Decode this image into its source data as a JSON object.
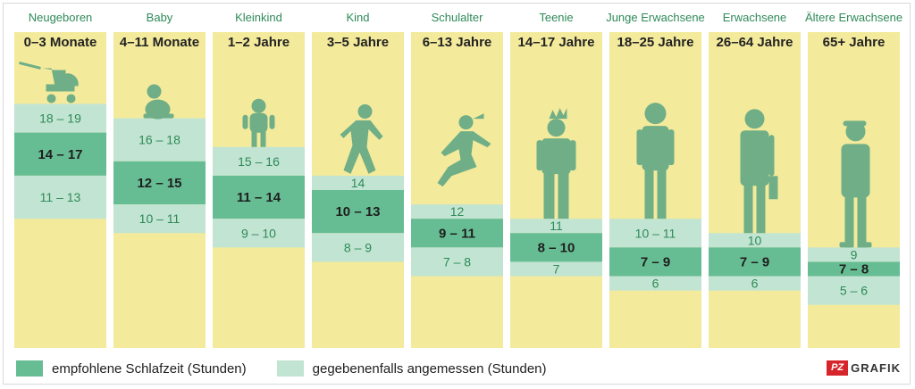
{
  "colors": {
    "background_column": "#f3ea9c",
    "recommended": "#67bd93",
    "acceptable": "#c2e4d2",
    "silhouette": "#6fae86",
    "header_text": "#2e8a58"
  },
  "chart_data": {
    "type": "bar",
    "title": "",
    "unit": "Stunden",
    "ylim": [
      24,
      2
    ],
    "categories": [
      "Neugeboren",
      "Baby",
      "Kleinkind",
      "Kind",
      "Schulalter",
      "Teenie",
      "Junge Erwachsene",
      "Erwachsene",
      "Ältere Erwachsene"
    ],
    "age_ranges": [
      "0–3 Monate",
      "4–11 Monate",
      "1–2 Jahre",
      "3–5 Jahre",
      "6–13 Jahre",
      "14–17 Jahre",
      "18–25 Jahre",
      "26–64 Jahre",
      "65+ Jahre"
    ],
    "series": [
      {
        "name": "empfohlene Schlafzeit (Stunden)",
        "values": [
          [
            14,
            17
          ],
          [
            12,
            15
          ],
          [
            11,
            14
          ],
          [
            10,
            13
          ],
          [
            9,
            11
          ],
          [
            8,
            10
          ],
          [
            7,
            9
          ],
          [
            7,
            9
          ],
          [
            7,
            8
          ]
        ],
        "labels": [
          "14 – 17",
          "12 – 15",
          "11 – 14",
          "10 – 13",
          "9 – 11",
          "8 – 10",
          "7 – 9",
          "7 – 9",
          "7 – 8"
        ]
      },
      {
        "name": "gegebenenfalls angemessen (Stunden)",
        "upper_values": [
          [
            17,
            19
          ],
          [
            15,
            18
          ],
          [
            14,
            16
          ],
          [
            13,
            14
          ],
          [
            11,
            12
          ],
          [
            10,
            11
          ],
          [
            9,
            11
          ],
          [
            9,
            10
          ],
          [
            8,
            9
          ]
        ],
        "upper_labels": [
          "18 – 19",
          "16 – 18",
          "15 – 16",
          "14",
          "12",
          "11",
          "10 – 11",
          "10",
          "9"
        ],
        "lower_values": [
          [
            11,
            14
          ],
          [
            10,
            12
          ],
          [
            9,
            11
          ],
          [
            8,
            10
          ],
          [
            7,
            9
          ],
          [
            7,
            8
          ],
          [
            6,
            7
          ],
          [
            6,
            7
          ],
          [
            5,
            7
          ]
        ],
        "lower_labels": [
          "11 – 13",
          "10 – 11",
          "9 – 10",
          "8 – 9",
          "7 – 8",
          "7",
          "6",
          "6",
          "5 – 6"
        ]
      }
    ]
  },
  "legend": {
    "recommended_label": "empfohlene Schlafzeit (Stunden)",
    "acceptable_label": "gegebenenfalls angemessen (Stunden)"
  },
  "brand": {
    "logo": "PZ",
    "text": "GRAFIK"
  },
  "icons": [
    "pram-icon",
    "baby-icon",
    "toddler-icon",
    "child-icon",
    "schoolgirl-icon",
    "teen-icon",
    "young-adult-icon",
    "adult-icon",
    "senior-icon"
  ]
}
